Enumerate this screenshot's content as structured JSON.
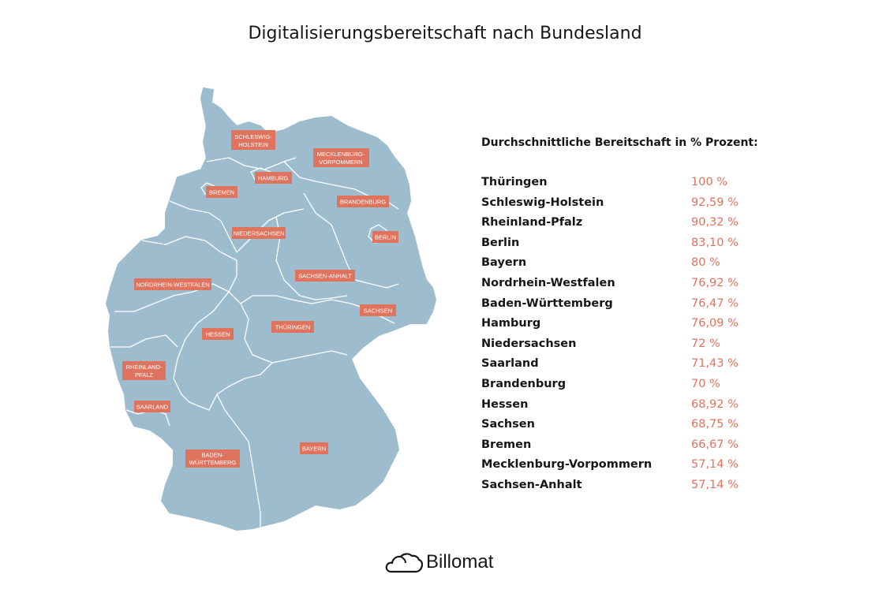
{
  "title": "Digitalisierungsbereitschaft nach Bundesland",
  "legend_heading": "Durchschnittliche Bereitschaft in % Prozent:",
  "states": [
    {
      "name": "Thüringen",
      "value": "100 %"
    },
    {
      "name": "Schleswig-Holstein",
      "value": "92,59 %"
    },
    {
      "name": "Rheinland-Pfalz",
      "value": "90,32 %"
    },
    {
      "name": "Berlin",
      "value": "83,10 %"
    },
    {
      "name": "Bayern",
      "value": "80 %"
    },
    {
      "name": "Nordrhein-Westfalen",
      "value": "76,92 %"
    },
    {
      "name": "Baden-Württemberg",
      "value": "76,47 %"
    },
    {
      "name": "Hamburg",
      "value": "76,09 %"
    },
    {
      "name": "Niedersachsen",
      "value": "72 %"
    },
    {
      "name": "Saarland",
      "value": "71,43 %"
    },
    {
      "name": "Brandenburg",
      "value": "70 %"
    },
    {
      "name": "Hessen",
      "value": "68,92 %"
    },
    {
      "name": "Sachsen",
      "value": "68,75 %"
    },
    {
      "name": "Bremen",
      "value": "66,67 %"
    },
    {
      "name": "Mecklenburg-Vorpommern",
      "value": "57,14 %"
    },
    {
      "name": "Sachsen-Anhalt",
      "value": "57,14 %"
    }
  ],
  "map_labels": {
    "schleswig_holstein": [
      "SCHLESWIG-",
      "HOLSTEIN"
    ],
    "mecklenburg_vorpommern": [
      "MECKLENBURG-",
      "VORPOMMERN"
    ],
    "hamburg": "HAMBURG",
    "bremen": "BREMEN",
    "brandenburg": "BRANDENBURG",
    "berlin": "BERLIN",
    "niedersachsen": "NIEDERSACHSEN",
    "sachsen_anhalt": "SACHSEN-ANHALT",
    "nordrhein_westfalen": "NORDRHEIN-WESTFALEN",
    "sachsen": "SACHSEN",
    "hessen": "HESSEN",
    "thueringen": "THÜRINGEN",
    "rheinland_pfalz": [
      "RHEINLAND-",
      "PFALZ"
    ],
    "saarland": "SAARLAND",
    "baden_wuerttemberg": [
      "BADEN-",
      "WÜRTTEMBERG"
    ],
    "bayern": "BAYERN"
  },
  "brand": {
    "name": "Billomat",
    "icon": "cloud-icon"
  },
  "colors": {
    "map_fill": "#9dbccd",
    "label_bg": "#e0735e",
    "value_text": "#e0735e",
    "border": "#ffffff"
  }
}
